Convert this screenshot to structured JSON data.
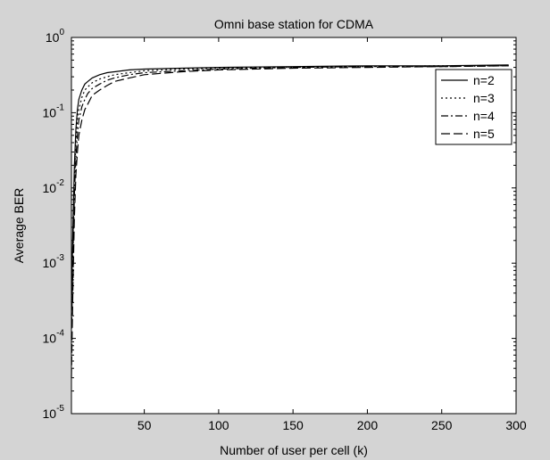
{
  "chart_data": {
    "type": "line",
    "title": "Omni base station for CDMA",
    "xlabel": "Number of user per cell (k)",
    "ylabel": "Average BER",
    "xlim": [
      1,
      300
    ],
    "ylim": [
      1e-05,
      1
    ],
    "yscale": "log",
    "grid": false,
    "legend_position": "top-right",
    "x_ticks": [
      50,
      100,
      150,
      200,
      250,
      300
    ],
    "y_ticks": [
      {
        "value": 1,
        "base": "10",
        "exp": "0"
      },
      {
        "value": 0.1,
        "base": "10",
        "exp": "-1"
      },
      {
        "value": 0.01,
        "base": "10",
        "exp": "-2"
      },
      {
        "value": 0.001,
        "base": "10",
        "exp": "-3"
      },
      {
        "value": 0.0001,
        "base": "10",
        "exp": "-4"
      },
      {
        "value": 1e-05,
        "base": "10",
        "exp": "-5"
      }
    ],
    "series": [
      {
        "name": "n=2",
        "style": "solid",
        "x": [
          1,
          2,
          3,
          4,
          5,
          6,
          8,
          10,
          12,
          15,
          20,
          25,
          30,
          40,
          50,
          75,
          100,
          150,
          200,
          250,
          295
        ],
        "y": [
          0.0003,
          0.003,
          0.02,
          0.06,
          0.11,
          0.15,
          0.2,
          0.24,
          0.26,
          0.29,
          0.32,
          0.34,
          0.35,
          0.37,
          0.38,
          0.39,
          0.4,
          0.41,
          0.42,
          0.42,
          0.43
        ]
      },
      {
        "name": "n=3",
        "style": "dotted",
        "x": [
          1,
          2,
          3,
          4,
          5,
          6,
          8,
          10,
          12,
          15,
          20,
          25,
          30,
          40,
          50,
          75,
          100,
          150,
          200,
          250,
          295
        ],
        "y": [
          0.0002,
          0.002,
          0.012,
          0.04,
          0.08,
          0.11,
          0.16,
          0.2,
          0.22,
          0.25,
          0.28,
          0.3,
          0.32,
          0.34,
          0.36,
          0.38,
          0.39,
          0.4,
          0.41,
          0.42,
          0.42
        ]
      },
      {
        "name": "n=4",
        "style": "dashdot",
        "x": [
          1,
          2,
          3,
          4,
          5,
          6,
          8,
          10,
          12,
          15,
          20,
          25,
          30,
          40,
          50,
          75,
          100,
          150,
          200,
          250,
          295
        ],
        "y": [
          0.0001,
          0.001,
          0.008,
          0.025,
          0.05,
          0.08,
          0.12,
          0.15,
          0.18,
          0.21,
          0.24,
          0.27,
          0.29,
          0.32,
          0.34,
          0.36,
          0.38,
          0.4,
          0.41,
          0.41,
          0.42
        ]
      },
      {
        "name": "n=5",
        "style": "longdash",
        "x": [
          1,
          2,
          3,
          4,
          5,
          6,
          8,
          10,
          12,
          15,
          20,
          25,
          30,
          40,
          50,
          75,
          100,
          150,
          200,
          250,
          295
        ],
        "y": [
          3e-05,
          0.0005,
          0.004,
          0.015,
          0.03,
          0.05,
          0.08,
          0.11,
          0.13,
          0.17,
          0.2,
          0.23,
          0.26,
          0.29,
          0.32,
          0.35,
          0.37,
          0.39,
          0.4,
          0.41,
          0.42
        ]
      }
    ]
  }
}
